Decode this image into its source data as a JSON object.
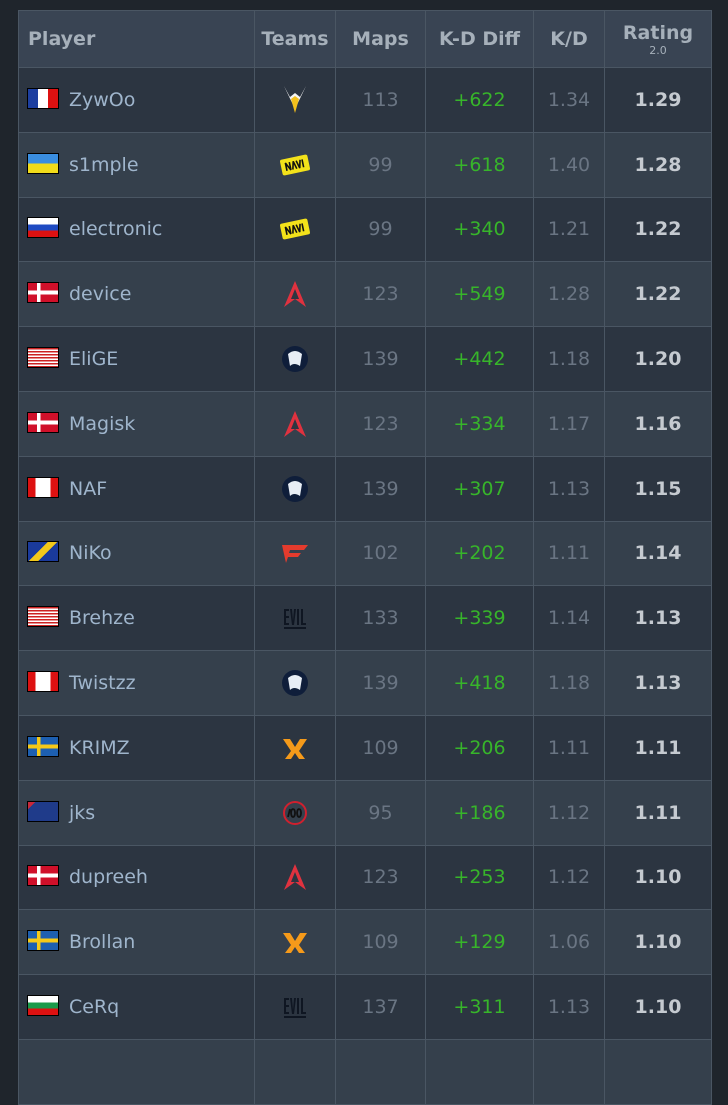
{
  "header": {
    "player": "Player",
    "teams": "Teams",
    "maps": "Maps",
    "kd_diff": "K-D Diff",
    "kd": "K/D",
    "rating": "Rating",
    "rating_sub": "2.0"
  },
  "colors": {
    "positive": "#37b52a",
    "background": "#1f252c"
  },
  "rows": [
    {
      "player": "ZywOo",
      "flag": "france",
      "team": "vitality",
      "maps": "113",
      "kd_diff": "+622",
      "kd": "1.34",
      "rating": "1.29"
    },
    {
      "player": "s1mple",
      "flag": "ukraine",
      "team": "navi",
      "maps": "99",
      "kd_diff": "+618",
      "kd": "1.40",
      "rating": "1.28"
    },
    {
      "player": "electronic",
      "flag": "russia",
      "team": "navi",
      "maps": "99",
      "kd_diff": "+340",
      "kd": "1.21",
      "rating": "1.22"
    },
    {
      "player": "device",
      "flag": "denmark",
      "team": "astralis",
      "maps": "123",
      "kd_diff": "+549",
      "kd": "1.28",
      "rating": "1.22"
    },
    {
      "player": "EliGE",
      "flag": "usa",
      "team": "liquid",
      "maps": "139",
      "kd_diff": "+442",
      "kd": "1.18",
      "rating": "1.20"
    },
    {
      "player": "Magisk",
      "flag": "denmark",
      "team": "astralis",
      "maps": "123",
      "kd_diff": "+334",
      "kd": "1.17",
      "rating": "1.16"
    },
    {
      "player": "NAF",
      "flag": "canada",
      "team": "liquid",
      "maps": "139",
      "kd_diff": "+307",
      "kd": "1.13",
      "rating": "1.15"
    },
    {
      "player": "NiKo",
      "flag": "bosnia",
      "team": "faze",
      "maps": "102",
      "kd_diff": "+202",
      "kd": "1.11",
      "rating": "1.14"
    },
    {
      "player": "Brehze",
      "flag": "usa",
      "team": "evil-geniuses",
      "maps": "133",
      "kd_diff": "+339",
      "kd": "1.14",
      "rating": "1.13"
    },
    {
      "player": "Twistzz",
      "flag": "canada",
      "team": "liquid",
      "maps": "139",
      "kd_diff": "+418",
      "kd": "1.18",
      "rating": "1.13"
    },
    {
      "player": "KRIMZ",
      "flag": "sweden",
      "team": "fnatic",
      "maps": "109",
      "kd_diff": "+206",
      "kd": "1.11",
      "rating": "1.11"
    },
    {
      "player": "jks",
      "flag": "australia",
      "team": "100-thieves",
      "maps": "95",
      "kd_diff": "+186",
      "kd": "1.12",
      "rating": "1.11"
    },
    {
      "player": "dupreeh",
      "flag": "denmark",
      "team": "astralis",
      "maps": "123",
      "kd_diff": "+253",
      "kd": "1.12",
      "rating": "1.10"
    },
    {
      "player": "Brollan",
      "flag": "sweden",
      "team": "fnatic",
      "maps": "109",
      "kd_diff": "+129",
      "kd": "1.06",
      "rating": "1.10"
    },
    {
      "player": "CeRq",
      "flag": "bulgaria",
      "team": "evil-geniuses",
      "maps": "137",
      "kd_diff": "+311",
      "kd": "1.13",
      "rating": "1.10"
    }
  ]
}
